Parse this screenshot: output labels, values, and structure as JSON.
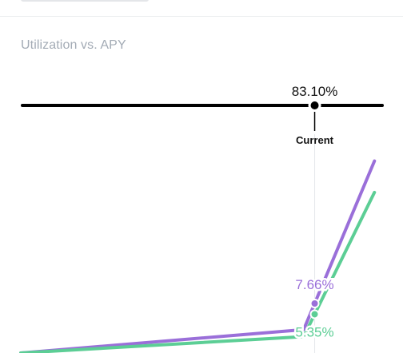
{
  "header": {
    "title": "Utilization vs. APY"
  },
  "chart_data": {
    "type": "line",
    "title": "Utilization vs. APY",
    "xlabel": "",
    "ylabel": "",
    "current_marker": {
      "label": "Current",
      "utilization": 83.1,
      "utilization_label": "83.10%"
    },
    "x_range": [
      0,
      100
    ],
    "kink": 80,
    "series": [
      {
        "key": "borrow",
        "color": "#9a6fd9",
        "current_value_label": "7.66%",
        "current_value": 7.66,
        "points": [
          [
            0,
            0
          ],
          [
            80,
            6.7
          ],
          [
            100,
            55
          ]
        ]
      },
      {
        "key": "supply",
        "color": "#5cce95",
        "current_value_label": "5.35%",
        "current_value": 5.35,
        "points": [
          [
            0,
            0
          ],
          [
            80,
            4.7
          ],
          [
            100,
            46
          ]
        ]
      }
    ],
    "grid": false,
    "legend": "none"
  }
}
